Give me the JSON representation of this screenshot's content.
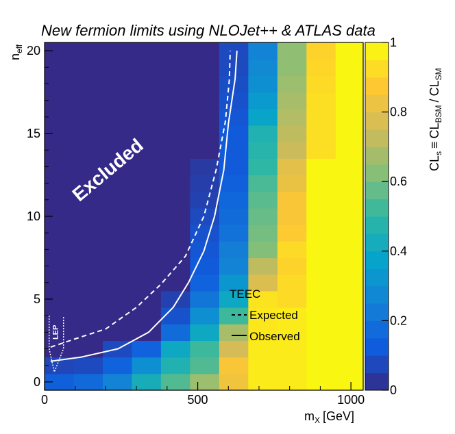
{
  "chart_data": {
    "type": "heatmap",
    "title": "New fermion limits using NLOJet++ & ATLAS data",
    "xlabel": "m",
    "xlabel_sub": "X",
    "xlabel_unit": "[GeV]",
    "ylabel": "n",
    "ylabel_sub": "eff",
    "zlabel": {
      "a": "CL",
      "a_sub": "s",
      "eq": "≡",
      "b": "CL",
      "b_sub": "BSM",
      "slash": "/",
      "c": "CL",
      "c_sub": "SM"
    },
    "xlim": [
      0,
      1040
    ],
    "ylim": [
      -0.5,
      20.5
    ],
    "zlim": [
      0,
      1
    ],
    "xticks": [
      0,
      500,
      1000
    ],
    "yticks": [
      0,
      5,
      10,
      15,
      20
    ],
    "zticks": [
      0,
      0.2,
      0.4,
      0.6,
      0.8,
      1
    ],
    "zticklabels": [
      "0",
      "0.2",
      "0.4",
      "0.6",
      "0.8",
      "1"
    ],
    "x_bins": [
      0,
      95,
      190,
      285,
      380,
      475,
      570,
      665,
      760,
      855,
      950,
      1040
    ],
    "y_bins": [
      -0.5,
      0.5,
      1.5,
      2.5,
      3.5,
      4.5,
      5.5,
      6.5,
      7.5,
      8.5,
      9.5,
      10.5,
      11.5,
      12.5,
      13.5,
      14.5,
      15.5,
      16.5,
      17.5,
      18.5,
      19.5,
      20.5
    ],
    "z_rows_bottom_to_top": [
      [
        0.14,
        0.17,
        0.26,
        0.43,
        0.55,
        0.66,
        0.84,
        0.96,
        0.96,
        0.99,
        0.99
      ],
      [
        0.07,
        0.08,
        0.15,
        0.3,
        0.46,
        0.55,
        0.86,
        0.96,
        0.96,
        0.99,
        0.99
      ],
      [
        0.0,
        0.0,
        0.08,
        0.15,
        0.4,
        0.52,
        0.76,
        0.96,
        0.96,
        0.99,
        0.99
      ],
      [
        0.0,
        0.0,
        0.0,
        0.0,
        0.18,
        0.4,
        0.68,
        0.95,
        0.96,
        0.99,
        0.99
      ],
      [
        0.0,
        0.0,
        0.0,
        0.0,
        0.1,
        0.3,
        0.52,
        0.95,
        0.96,
        0.99,
        0.99
      ],
      [
        0.0,
        0.0,
        0.0,
        0.0,
        0.06,
        0.21,
        0.4,
        0.94,
        0.92,
        0.99,
        0.99
      ],
      [
        0.0,
        0.0,
        0.0,
        0.0,
        0.0,
        0.15,
        0.33,
        0.78,
        0.92,
        0.99,
        0.99
      ],
      [
        0.0,
        0.0,
        0.0,
        0.0,
        0.0,
        0.12,
        0.26,
        0.72,
        0.9,
        0.99,
        0.99
      ],
      [
        0.0,
        0.0,
        0.0,
        0.0,
        0.0,
        0.11,
        0.24,
        0.62,
        0.92,
        0.99,
        0.99
      ],
      [
        0.0,
        0.0,
        0.0,
        0.0,
        0.0,
        0.1,
        0.2,
        0.6,
        0.88,
        0.99,
        0.99
      ],
      [
        0.0,
        0.0,
        0.0,
        0.0,
        0.0,
        0.08,
        0.18,
        0.58,
        0.86,
        0.99,
        0.99
      ],
      [
        0.0,
        0.0,
        0.0,
        0.0,
        0.0,
        0.06,
        0.16,
        0.56,
        0.86,
        0.99,
        0.99
      ],
      [
        0.0,
        0.0,
        0.0,
        0.0,
        0.0,
        0.05,
        0.14,
        0.54,
        0.82,
        0.99,
        0.99
      ],
      [
        0.0,
        0.0,
        0.0,
        0.0,
        0.0,
        0.04,
        0.12,
        0.5,
        0.8,
        0.99,
        0.99
      ],
      [
        0.0,
        0.0,
        0.0,
        0.0,
        0.0,
        0.0,
        0.12,
        0.48,
        0.74,
        0.93,
        0.99
      ],
      [
        0.0,
        0.0,
        0.0,
        0.0,
        0.0,
        0.0,
        0.12,
        0.46,
        0.72,
        0.93,
        0.99
      ],
      [
        0.0,
        0.0,
        0.0,
        0.0,
        0.0,
        0.0,
        0.11,
        0.38,
        0.7,
        0.93,
        0.99
      ],
      [
        0.0,
        0.0,
        0.0,
        0.0,
        0.0,
        0.0,
        0.1,
        0.34,
        0.68,
        0.93,
        0.99
      ],
      [
        0.0,
        0.0,
        0.0,
        0.0,
        0.0,
        0.0,
        0.09,
        0.3,
        0.66,
        0.92,
        0.99
      ],
      [
        0.0,
        0.0,
        0.0,
        0.0,
        0.0,
        0.0,
        0.08,
        0.28,
        0.64,
        0.91,
        0.99
      ],
      [
        0.0,
        0.0,
        0.0,
        0.0,
        0.0,
        0.0,
        0.08,
        0.26,
        0.64,
        0.9,
        0.99
      ]
    ],
    "series": [
      {
        "name": "Expected",
        "style": "dashed",
        "color": "#ffffff",
        "x": [
          20,
          100,
          200,
          300,
          380,
          460,
          520,
          560,
          590,
          603,
          606
        ],
        "y": [
          2.1,
          2.6,
          3.2,
          4.5,
          5.9,
          7.6,
          10.0,
          12.8,
          15.7,
          18.2,
          20.0
        ]
      },
      {
        "name": "Observed",
        "style": "solid",
        "color": "#ffffff",
        "x": [
          20,
          120,
          240,
          340,
          420,
          470,
          520,
          555,
          585,
          600,
          622,
          628
        ],
        "y": [
          1.25,
          1.5,
          2.0,
          3.0,
          4.5,
          6.0,
          7.9,
          10.0,
          12.8,
          15.6,
          18.3,
          20.0
        ]
      }
    ],
    "lep_region": {
      "label": "LEP",
      "outline_x": [
        15,
        15,
        32,
        62,
        62
      ],
      "outline_y": [
        4.0,
        2.0,
        0.6,
        2.0,
        4.0
      ]
    },
    "legend": {
      "title": "TEEC",
      "entries": [
        "Expected",
        "Observed"
      ],
      "placement": "center-right"
    },
    "annotations": [
      {
        "text": "Excluded",
        "x": 220,
        "y": 12.5,
        "rotation_deg": -40
      }
    ],
    "palette": [
      "#352a87",
      "#0f5cdd",
      "#1481d6",
      "#06a4ca",
      "#2eb7a4",
      "#87bf77",
      "#d1bb59",
      "#fec832",
      "#f9fb0e"
    ]
  }
}
